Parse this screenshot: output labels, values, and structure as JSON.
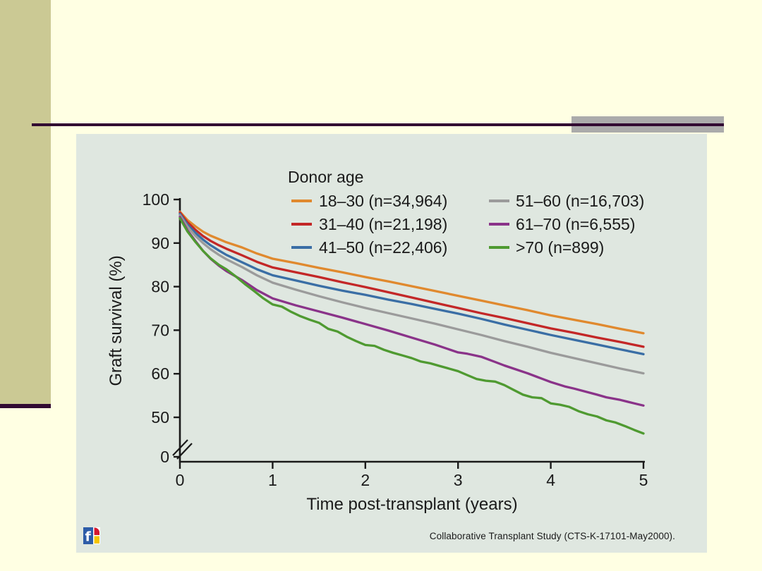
{
  "slide": {
    "background_color": "#FFFFE3",
    "accent_bar_color": "#CBC994",
    "rule_color": "#320A32",
    "rule_gray_color": "#ABABAB",
    "panel_color": "#DFE7E0"
  },
  "footer": {
    "source_label": "Collaborative Transplant Study (CTS-K-17101-May2000)."
  },
  "chart_data": {
    "type": "line",
    "legend_title": "Donor age",
    "xlabel": "Time post-transplant (years)",
    "ylabel": "Graft survival (%)",
    "xlim": [
      0,
      5
    ],
    "xticks": [
      0,
      1,
      2,
      3,
      4,
      5
    ],
    "yticks_shown": [
      100,
      90,
      80,
      70,
      60,
      50,
      0
    ],
    "y_axis_break": true,
    "grid": false,
    "legend_position": "top-center, two columns",
    "axis_color": "#1A1A1A",
    "series": [
      {
        "name": "18–30 (n=34,964)",
        "color": "#E0892E",
        "points": [
          [
            0,
            97.2
          ],
          [
            0.08,
            95.3
          ],
          [
            0.17,
            93.8
          ],
          [
            0.25,
            92.6
          ],
          [
            0.33,
            91.7
          ],
          [
            0.42,
            90.9
          ],
          [
            0.5,
            90.2
          ],
          [
            0.67,
            89.0
          ],
          [
            0.83,
            87.6
          ],
          [
            1,
            86.4
          ],
          [
            1.25,
            85.4
          ],
          [
            1.5,
            84.3
          ],
          [
            1.75,
            83.3
          ],
          [
            2,
            82.2
          ],
          [
            2.25,
            81.2
          ],
          [
            2.5,
            80.1
          ],
          [
            2.75,
            79.0
          ],
          [
            3,
            77.9
          ],
          [
            3.25,
            76.8
          ],
          [
            3.5,
            75.7
          ],
          [
            3.75,
            74.6
          ],
          [
            4,
            73.4
          ],
          [
            4.25,
            72.4
          ],
          [
            4.5,
            71.4
          ],
          [
            4.75,
            70.3
          ],
          [
            5,
            69.3
          ]
        ]
      },
      {
        "name": "31–40 (n=21,198)",
        "color": "#C32727",
        "points": [
          [
            0,
            97.0
          ],
          [
            0.08,
            94.8
          ],
          [
            0.17,
            93.0
          ],
          [
            0.25,
            91.6
          ],
          [
            0.33,
            90.5
          ],
          [
            0.42,
            89.5
          ],
          [
            0.5,
            88.7
          ],
          [
            0.67,
            87.2
          ],
          [
            0.83,
            85.7
          ],
          [
            1,
            84.4
          ],
          [
            1.25,
            83.3
          ],
          [
            1.5,
            82.2
          ],
          [
            1.75,
            81.0
          ],
          [
            2,
            79.9
          ],
          [
            2.25,
            78.7
          ],
          [
            2.5,
            77.5
          ],
          [
            2.75,
            76.3
          ],
          [
            3,
            75.1
          ],
          [
            3.25,
            73.9
          ],
          [
            3.5,
            72.8
          ],
          [
            3.75,
            71.6
          ],
          [
            4,
            70.4
          ],
          [
            4.25,
            69.4
          ],
          [
            4.5,
            68.3
          ],
          [
            4.75,
            67.3
          ],
          [
            5,
            66.2
          ]
        ]
      },
      {
        "name": "41–50 (n=22,406)",
        "color": "#3A6EA5",
        "points": [
          [
            0,
            96.7
          ],
          [
            0.08,
            94.3
          ],
          [
            0.17,
            92.3
          ],
          [
            0.25,
            90.8
          ],
          [
            0.33,
            89.5
          ],
          [
            0.42,
            88.3
          ],
          [
            0.5,
            87.3
          ],
          [
            0.67,
            85.6
          ],
          [
            0.83,
            84.0
          ],
          [
            1,
            82.6
          ],
          [
            1.25,
            81.4
          ],
          [
            1.5,
            80.2
          ],
          [
            1.75,
            79.1
          ],
          [
            2,
            78.1
          ],
          [
            2.25,
            77.0
          ],
          [
            2.5,
            76.0
          ],
          [
            2.75,
            74.9
          ],
          [
            3,
            73.8
          ],
          [
            3.25,
            72.6
          ],
          [
            3.5,
            71.3
          ],
          [
            3.75,
            70.1
          ],
          [
            4,
            68.9
          ],
          [
            4.25,
            67.8
          ],
          [
            4.5,
            66.7
          ],
          [
            4.75,
            65.6
          ],
          [
            5,
            64.5
          ]
        ]
      },
      {
        "name": "51–60 (n=16,703)",
        "color": "#9B9B9B",
        "points": [
          [
            0,
            96.4
          ],
          [
            0.08,
            93.8
          ],
          [
            0.17,
            91.6
          ],
          [
            0.25,
            90.0
          ],
          [
            0.33,
            88.6
          ],
          [
            0.42,
            87.3
          ],
          [
            0.5,
            86.3
          ],
          [
            0.67,
            84.5
          ],
          [
            0.83,
            82.6
          ],
          [
            1,
            80.9
          ],
          [
            1.25,
            79.3
          ],
          [
            1.5,
            77.8
          ],
          [
            1.75,
            76.4
          ],
          [
            2,
            75.1
          ],
          [
            2.25,
            73.9
          ],
          [
            2.5,
            72.7
          ],
          [
            2.75,
            71.5
          ],
          [
            3,
            70.2
          ],
          [
            3.25,
            68.9
          ],
          [
            3.5,
            67.5
          ],
          [
            3.75,
            66.2
          ],
          [
            4,
            64.8
          ],
          [
            4.25,
            63.6
          ],
          [
            4.5,
            62.4
          ],
          [
            4.75,
            61.2
          ],
          [
            5,
            60.1
          ]
        ]
      },
      {
        "name": "61–70 (n=6,555)",
        "color": "#8A3389",
        "points": [
          [
            0,
            96.0
          ],
          [
            0.08,
            93.0
          ],
          [
            0.17,
            90.4
          ],
          [
            0.25,
            88.2
          ],
          [
            0.33,
            86.4
          ],
          [
            0.42,
            84.8
          ],
          [
            0.5,
            83.6
          ],
          [
            0.67,
            81.5
          ],
          [
            0.83,
            79.2
          ],
          [
            1,
            77.3
          ],
          [
            1.25,
            75.7
          ],
          [
            1.5,
            74.3
          ],
          [
            1.75,
            72.9
          ],
          [
            2,
            71.4
          ],
          [
            2.25,
            69.9
          ],
          [
            2.5,
            68.3
          ],
          [
            2.75,
            66.7
          ],
          [
            3,
            64.9
          ],
          [
            3.1,
            64.6
          ],
          [
            3.25,
            63.9
          ],
          [
            3.4,
            62.7
          ],
          [
            3.5,
            61.9
          ],
          [
            3.75,
            60.1
          ],
          [
            3.9,
            58.9
          ],
          [
            4,
            58.1
          ],
          [
            4.15,
            57.1
          ],
          [
            4.25,
            56.6
          ],
          [
            4.5,
            55.2
          ],
          [
            4.6,
            54.6
          ],
          [
            4.75,
            54.0
          ],
          [
            4.9,
            53.2
          ],
          [
            5,
            52.7
          ]
        ]
      },
      {
        "name": ">70 (n=899)",
        "color": "#4F9A31",
        "points": [
          [
            0,
            95.7
          ],
          [
            0.08,
            92.7
          ],
          [
            0.17,
            90.2
          ],
          [
            0.25,
            88.2
          ],
          [
            0.33,
            86.5
          ],
          [
            0.42,
            85.0
          ],
          [
            0.5,
            84.0
          ],
          [
            0.6,
            82.4
          ],
          [
            0.7,
            80.6
          ],
          [
            0.8,
            79.0
          ],
          [
            0.9,
            77.3
          ],
          [
            1,
            75.9
          ],
          [
            1.1,
            75.4
          ],
          [
            1.2,
            74.2
          ],
          [
            1.3,
            73.2
          ],
          [
            1.4,
            72.4
          ],
          [
            1.5,
            71.7
          ],
          [
            1.6,
            70.3
          ],
          [
            1.7,
            69.7
          ],
          [
            1.8,
            68.5
          ],
          [
            1.9,
            67.5
          ],
          [
            2,
            66.6
          ],
          [
            2.1,
            66.4
          ],
          [
            2.2,
            65.5
          ],
          [
            2.3,
            64.8
          ],
          [
            2.4,
            64.2
          ],
          [
            2.5,
            63.6
          ],
          [
            2.6,
            62.8
          ],
          [
            2.7,
            62.4
          ],
          [
            2.8,
            61.8
          ],
          [
            2.9,
            61.2
          ],
          [
            3,
            60.6
          ],
          [
            3.1,
            59.7
          ],
          [
            3.2,
            58.8
          ],
          [
            3.3,
            58.4
          ],
          [
            3.4,
            58.2
          ],
          [
            3.5,
            57.4
          ],
          [
            3.6,
            56.3
          ],
          [
            3.7,
            55.2
          ],
          [
            3.8,
            54.6
          ],
          [
            3.9,
            54.4
          ],
          [
            4,
            53.2
          ],
          [
            4.1,
            52.9
          ],
          [
            4.2,
            52.4
          ],
          [
            4.3,
            51.4
          ],
          [
            4.4,
            50.7
          ],
          [
            4.5,
            50.2
          ],
          [
            4.6,
            49.3
          ],
          [
            4.7,
            48.8
          ],
          [
            4.8,
            48.0
          ],
          [
            4.9,
            47.1
          ],
          [
            5,
            46.3
          ]
        ]
      }
    ]
  }
}
